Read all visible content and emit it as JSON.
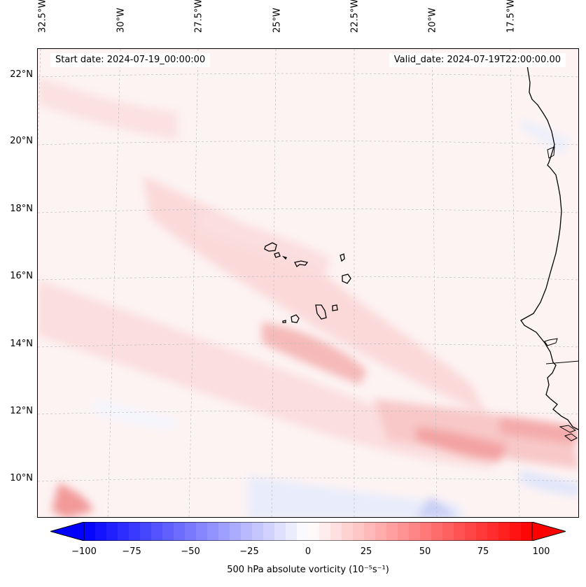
{
  "map": {
    "start_date": "Start date: 2024-07-19_00:00:00",
    "valid_date": "Valid_date: 2024-07-19T22:00:00.00",
    "lon_labels": [
      "32.5°W",
      "30°W",
      "27.5°W",
      "25°W",
      "22.5°W",
      "20°W",
      "17.5°W"
    ],
    "lat_labels": [
      "22°N",
      "20°N",
      "18°N",
      "16°N",
      "14°N",
      "12°N",
      "10°N"
    ],
    "features": [
      "cape-verde-islands",
      "west-africa-coastline"
    ]
  },
  "colorbar": {
    "label": "500 hPa absolute vorticity (10⁻⁵s⁻¹)",
    "ticks": [
      "−100",
      "−75",
      "−50",
      "−25",
      "0",
      "25",
      "50",
      "75",
      "100"
    ],
    "min": -100,
    "max": 100,
    "levels": 40,
    "colormap": "bwr",
    "negative_color": "#0000ff",
    "zero_color": "#ffffff",
    "positive_color": "#ff0000"
  }
}
